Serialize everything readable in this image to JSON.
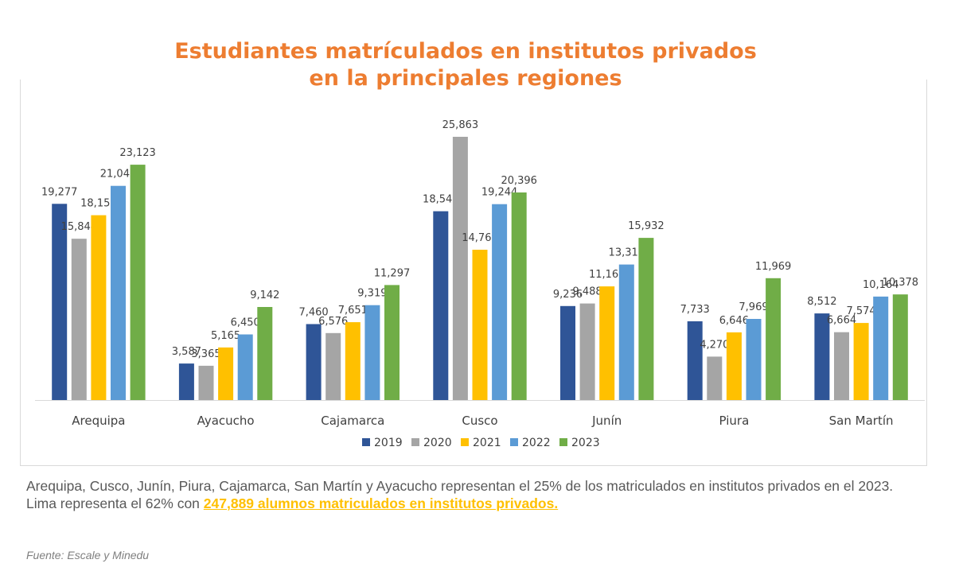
{
  "title_line1": "Estudiantes matrículados en institutos privados",
  "title_line2": "en la principales regiones",
  "notes": {
    "line1": "Arequipa, Cusco, Junín, Piura, Cajamarca, San Martín y Ayacucho representan el 25% de los matriculados en institutos privados en el 2023.",
    "line2_prefix": "Lima representa el 62% con",
    "line2_highlight": "247,889 alumnos matriculados en institutos privados."
  },
  "source": "Fuente: Escale y Minedu",
  "chart_data": {
    "type": "bar",
    "title": "Estudiantes matrículados en institutos privados en la principales regiones",
    "categories": [
      "Arequipa",
      "Ayacucho",
      "Cajamarca",
      "Cusco",
      "Junín",
      "Piura",
      "San Martín"
    ],
    "series": [
      {
        "name": "2019",
        "color": "#2F5597",
        "values": [
          19277,
          3587,
          7460,
          18547,
          9236,
          7733,
          8512
        ]
      },
      {
        "name": "2020",
        "color": "#A5A5A5",
        "values": [
          15844,
          3365,
          6576,
          25863,
          9488,
          4270,
          6664
        ]
      },
      {
        "name": "2021",
        "color": "#FFC000",
        "values": [
          18156,
          5165,
          7651,
          14769,
          11162,
          6646,
          7574
        ]
      },
      {
        "name": "2022",
        "color": "#5B9BD5",
        "values": [
          21042,
          6450,
          9319,
          19244,
          13313,
          7969,
          10164
        ]
      },
      {
        "name": "2023",
        "color": "#70AD47",
        "values": [
          23123,
          9142,
          11297,
          20396,
          15932,
          11969,
          10378
        ]
      }
    ],
    "ylim": [
      0,
      26000
    ],
    "grid": false,
    "legend_position": "bottom",
    "data_labels": true
  }
}
